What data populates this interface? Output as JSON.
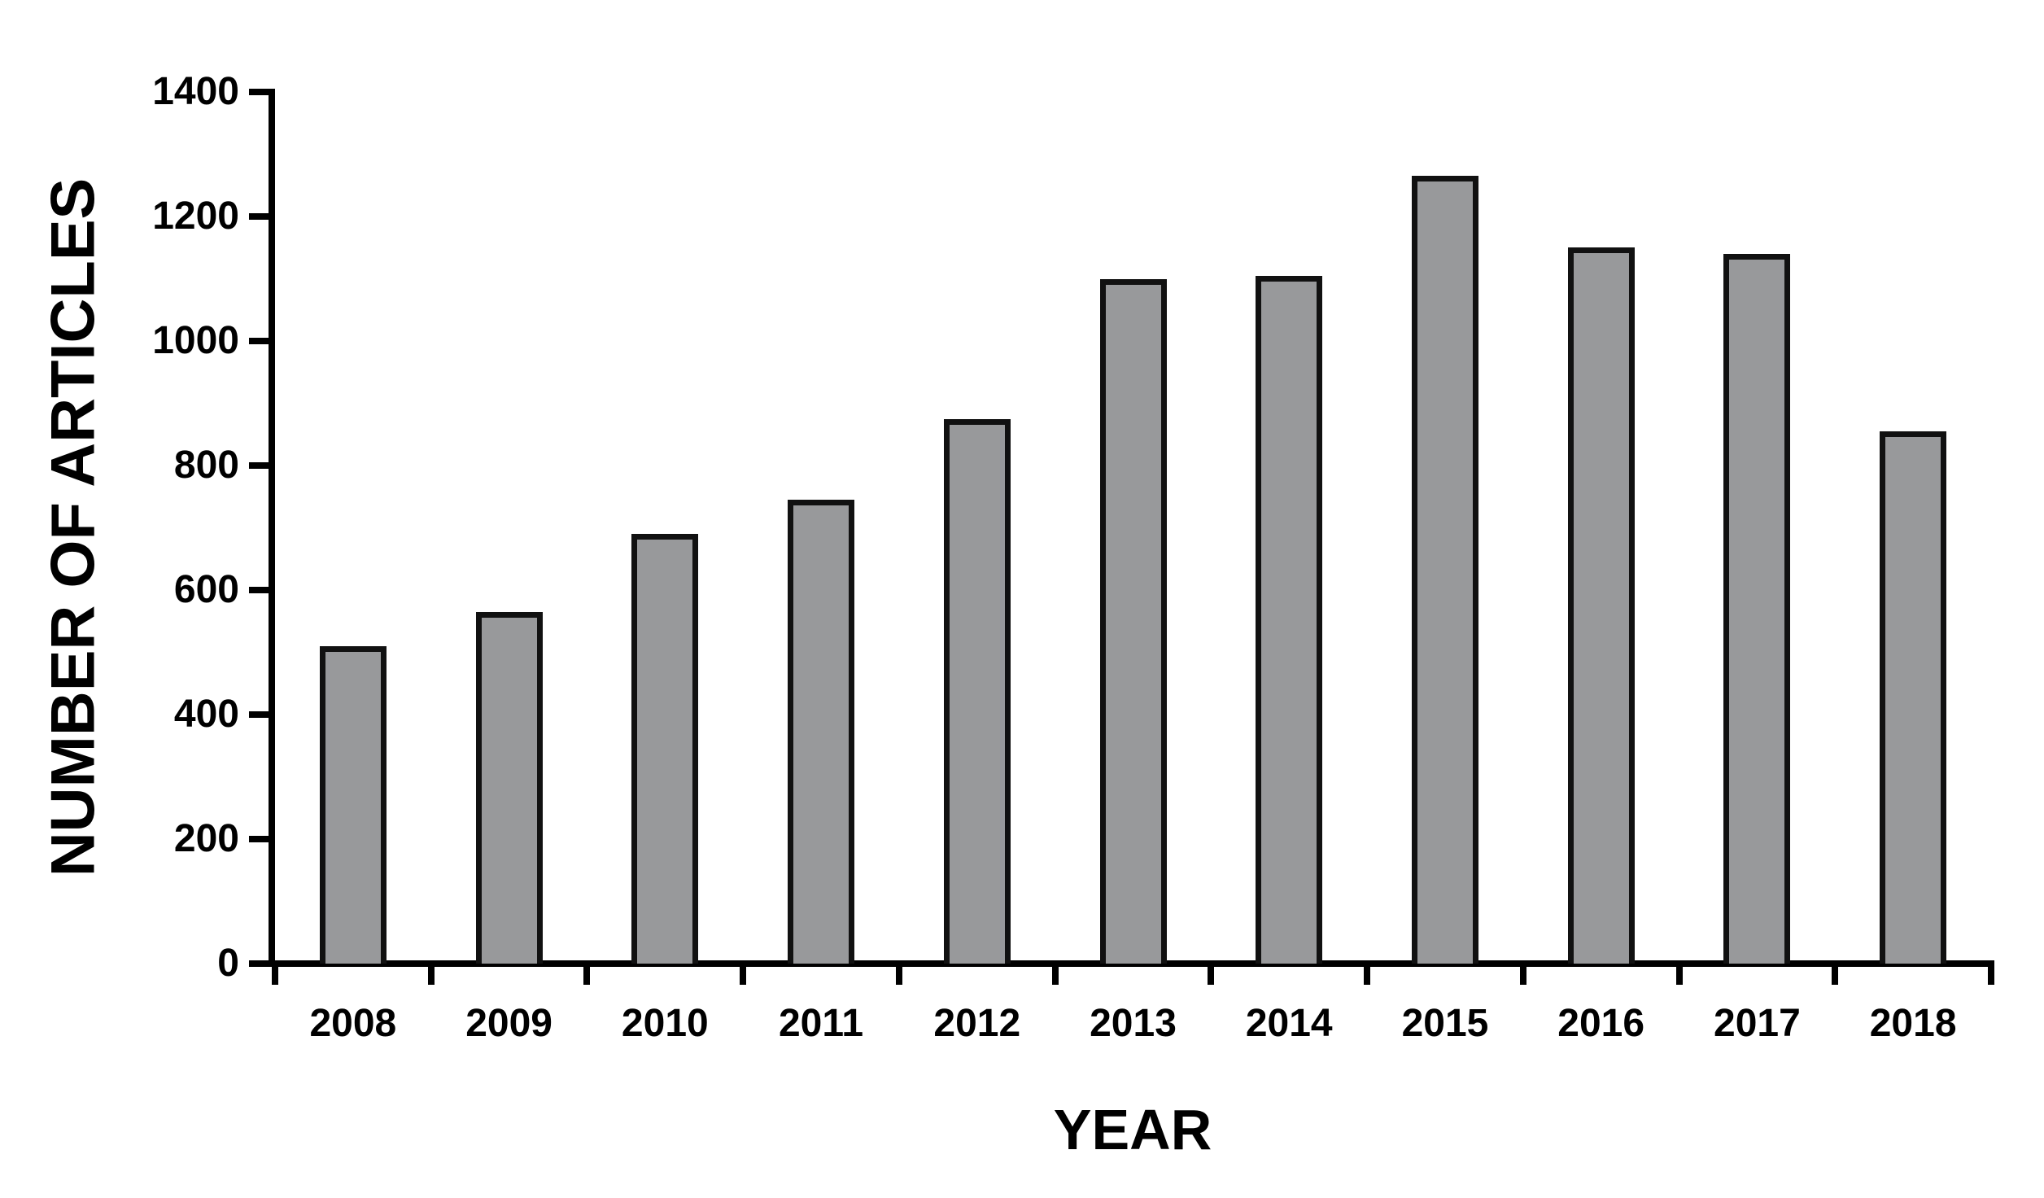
{
  "chart_data": {
    "type": "bar",
    "title": "",
    "xlabel": "YEAR",
    "ylabel": "NUMBER OF ARTICLES",
    "categories": [
      "2008",
      "2009",
      "2010",
      "2011",
      "2012",
      "2013",
      "2014",
      "2015",
      "2016",
      "2017",
      "2018"
    ],
    "values": [
      510,
      565,
      690,
      745,
      875,
      1100,
      1105,
      1265,
      1150,
      1140,
      855
    ],
    "ylim": [
      0,
      1400
    ],
    "ytick_step": 200,
    "ytick_labels": [
      "0",
      "200",
      "400",
      "600",
      "800",
      "1000",
      "1200",
      "1400"
    ],
    "grid": false,
    "legend": null,
    "colors": {
      "bar_fill": "#98999B",
      "bar_outline": "#111111",
      "axis": "#000000",
      "text": "#000000",
      "background": "#FFFFFF"
    }
  }
}
